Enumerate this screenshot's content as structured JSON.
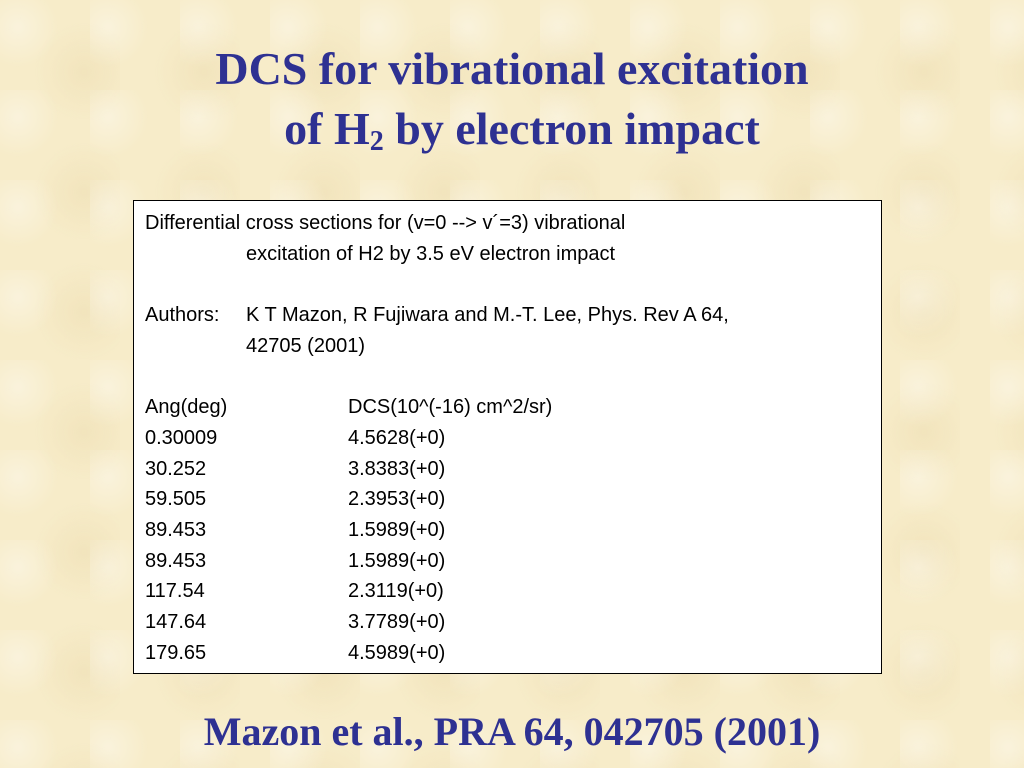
{
  "title": {
    "line1": "DCS for vibrational excitation",
    "line2_start": "of H",
    "line2_subscript": "2",
    "line2_end": "by electron impact"
  },
  "box": {
    "description": [
      "Differential cross sections for (v=0 --> v´=3) vibrational",
      "excitation of H2 by 3.5 eV electron impact"
    ],
    "authors_label": "Authors:",
    "authors": [
      "K T Mazon, R Fujiwara and M.-T. Lee, Phys. Rev A 64,",
      "42705 (2001)"
    ],
    "table": {
      "header": [
        "Ang(deg)",
        "DCS(10^(-16) cm^2/sr)"
      ],
      "rows": [
        [
          "0.30009",
          "4.5628(+0)"
        ],
        [
          "30.252",
          "3.8383(+0)"
        ],
        [
          "59.505",
          "2.3953(+0)"
        ],
        [
          "89.453",
          "1.5989(+0)"
        ],
        [
          "89.453",
          "1.5989(+0)"
        ],
        [
          "117.54",
          "2.3119(+0)"
        ],
        [
          "147.64",
          "3.7789(+0)"
        ],
        [
          "179.65",
          "4.5989(+0)"
        ]
      ]
    }
  },
  "footer": "Mazon et al., PRA 64, 042705 (2001)"
}
